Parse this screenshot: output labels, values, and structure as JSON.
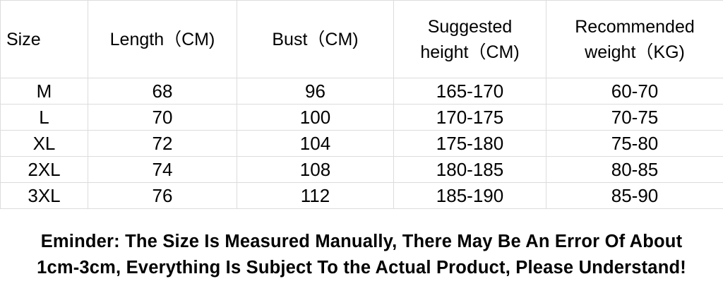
{
  "headers": [
    "Size",
    "Length（CM)",
    "Bust（CM)",
    "Suggested height（CM)",
    "Recommended weight（KG)"
  ],
  "header_lines": {
    "height": [
      "Suggested",
      "height（CM)"
    ],
    "weight": [
      "Recommended",
      "weight（KG)"
    ]
  },
  "rows": [
    [
      "M",
      "68",
      "96",
      "165-170",
      "60-70"
    ],
    [
      "L",
      "70",
      "100",
      "170-175",
      "70-75"
    ],
    [
      "XL",
      "72",
      "104",
      "175-180",
      "75-80"
    ],
    [
      "2XL",
      "74",
      "108",
      "180-185",
      "80-85"
    ],
    [
      "3XL",
      "76",
      "112",
      "185-190",
      "85-90"
    ]
  ],
  "note": [
    "Eminder: The Size Is Measured Manually, There May Be An Error Of About",
    "1cm-3cm, Everything Is Subject To the Actual Product, Please Understand!"
  ]
}
